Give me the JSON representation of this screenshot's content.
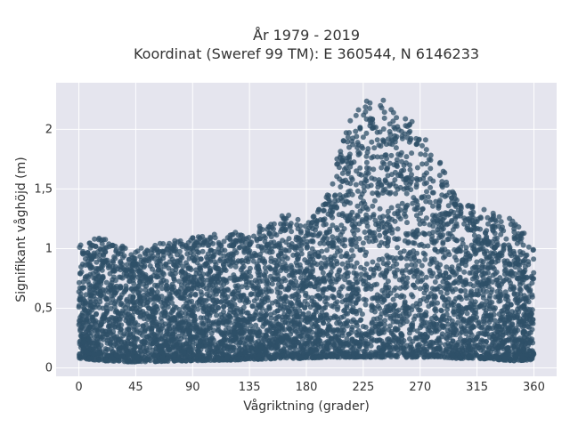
{
  "chart_data": {
    "type": "scatter",
    "title_line1": "År 1979 - 2019",
    "title_line2": "Koordinat (Sweref 99 TM): E 360544, N 6146233",
    "xlabel": "Vågriktning (grader)",
    "ylabel": "Signifikant våghöjd (m)",
    "xlim": [
      -18,
      378
    ],
    "ylim": [
      -0.07,
      2.39
    ],
    "x_ticks": [
      0,
      45,
      90,
      135,
      180,
      225,
      270,
      315,
      360
    ],
    "y_ticks": [
      0,
      0.5,
      1,
      1.5,
      2
    ],
    "y_tick_labels": [
      "0",
      "0,5",
      "1",
      "1,5",
      "2"
    ],
    "grid": true,
    "point_color": "#2f5068",
    "background_color": "#e5e5ee",
    "envelope": {
      "direction": [
        0,
        20,
        45,
        90,
        135,
        165,
        180,
        195,
        210,
        225,
        240,
        255,
        270,
        285,
        300,
        315,
        330,
        345,
        360
      ],
      "min_height": [
        0.08,
        0.06,
        0.05,
        0.06,
        0.07,
        0.08,
        0.08,
        0.09,
        0.09,
        0.09,
        0.09,
        0.09,
        0.09,
        0.09,
        0.08,
        0.08,
        0.07,
        0.06,
        0.07
      ],
      "max_height": [
        1.05,
        1.1,
        1.0,
        1.1,
        1.15,
        1.3,
        1.2,
        1.4,
        2.0,
        2.25,
        2.25,
        2.15,
        2.0,
        1.75,
        1.4,
        1.35,
        1.3,
        1.25,
        1.0
      ]
    }
  }
}
